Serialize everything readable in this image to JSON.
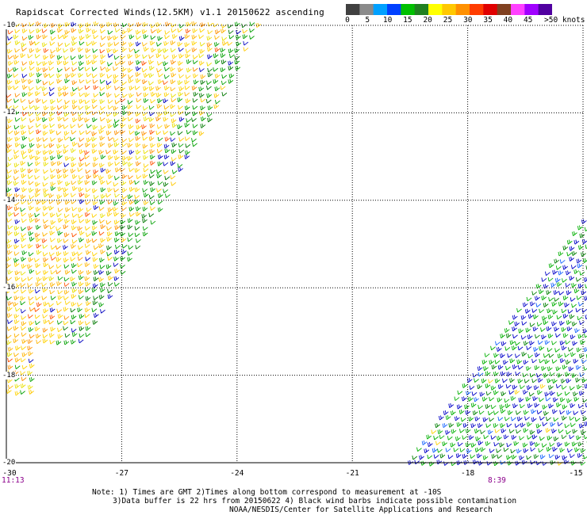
{
  "title": "Rapidscat Corrected Winds(12.5KM) v1.1 20150622 ascending",
  "scale": {
    "labels": [
      "0",
      "5",
      "10",
      "15",
      "20",
      "25",
      "30",
      "35",
      "40",
      "45"
    ],
    "unit": ">50 knots",
    "colors": [
      "#404040",
      "#8a8a8a",
      "#00a0ff",
      "#0040ff",
      "#00c000",
      "#208020",
      "#ffff00",
      "#ffc800",
      "#ff9000",
      "#ff3c00",
      "#e00000",
      "#804020",
      "#ff40ff",
      "#a000ff",
      "#5000a0"
    ]
  },
  "y_ticks": [
    "-10",
    "-12",
    "-14",
    "-16",
    "-18",
    "-20"
  ],
  "x_ticks": [
    "-30",
    "-27",
    "-24",
    "-21",
    "-18",
    "-15"
  ],
  "times": {
    "left": "11:13",
    "right": "8:39"
  },
  "notes": [
    "Note: 1) Times are GMT 2)Times along bottom correspond to measurement at -10S",
    "3)Data buffer is 22 hrs from 20150622 4) Black wind barbs indicate possible contamination",
    "NOAA/NESDIS/Center for Satellite Applications and Research"
  ]
}
